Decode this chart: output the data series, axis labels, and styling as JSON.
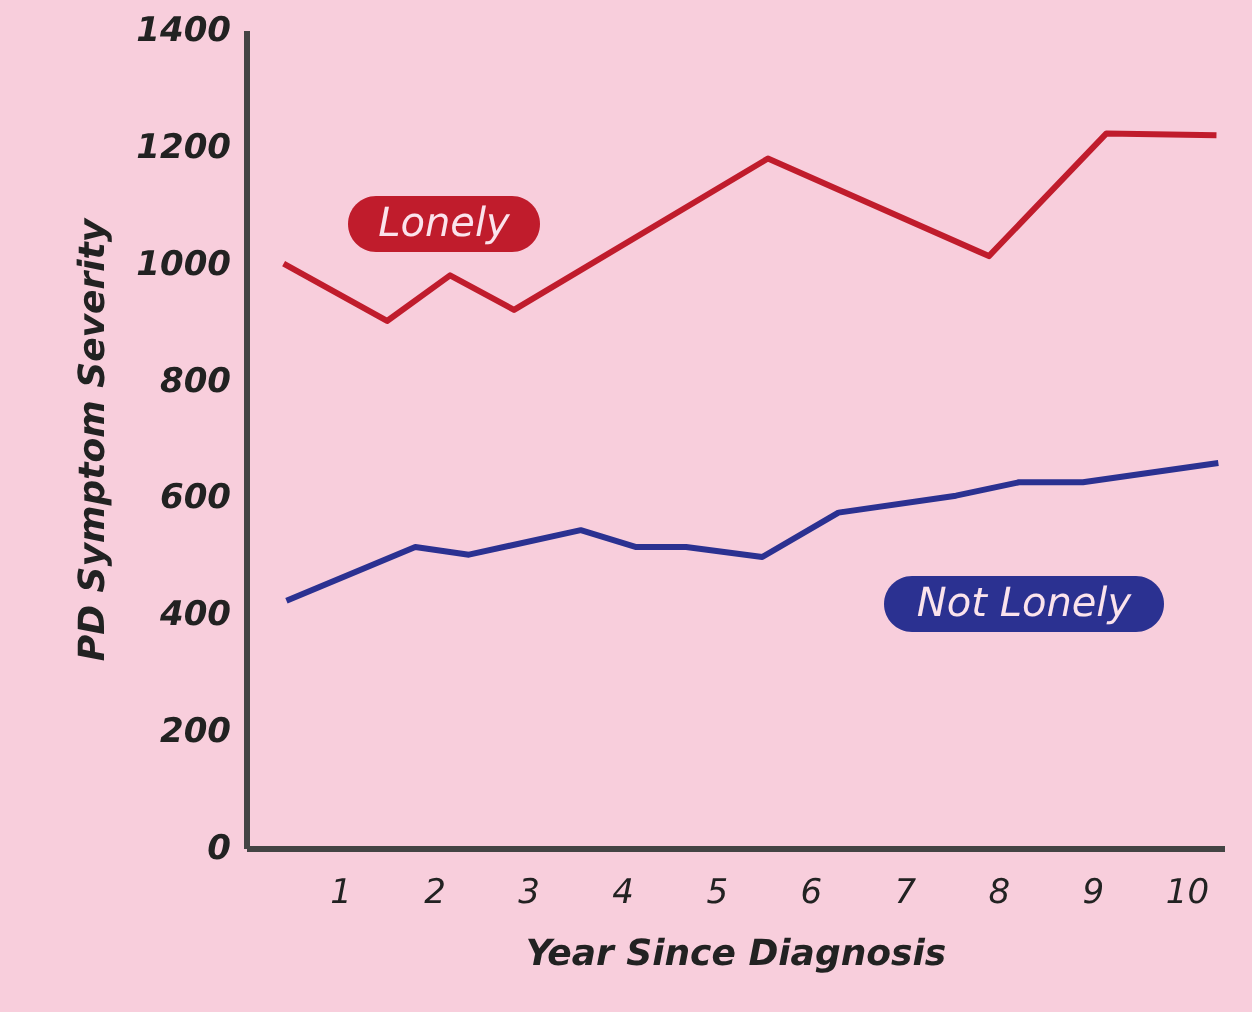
{
  "chart_data": {
    "type": "line",
    "xlabel": "Year Since Diagnosis",
    "ylabel": "PD Symptom Severity",
    "xlim": [
      0,
      10.4
    ],
    "xticks": [
      1,
      2,
      3,
      4,
      5,
      6,
      7,
      8,
      9,
      10
    ],
    "ylim": [
      0,
      1400
    ],
    "yticks": [
      0,
      200,
      400,
      600,
      800,
      1000,
      1200,
      1400
    ],
    "grid": false,
    "legend": false,
    "marker": "none",
    "line_style": "solid",
    "series": [
      {
        "name": "Lonely",
        "color": "#c01c2c",
        "x": [
          0.4,
          1.5,
          2.17,
          2.85,
          5.55,
          7.9,
          9.15,
          10.32
        ],
        "values": [
          1000,
          902,
          980,
          921,
          1180,
          1013,
          1223,
          1220
        ]
      },
      {
        "name": "Not Lonely",
        "color": "#2b3191",
        "x": [
          0.43,
          1.8,
          2.37,
          3.56,
          4.15,
          4.68,
          5.49,
          6.3,
          7.55,
          8.22,
          8.9,
          10.34
        ],
        "values": [
          423,
          515,
          502,
          544,
          515,
          515,
          498,
          574,
          603,
          626,
          626,
          659
        ]
      }
    ]
  }
}
